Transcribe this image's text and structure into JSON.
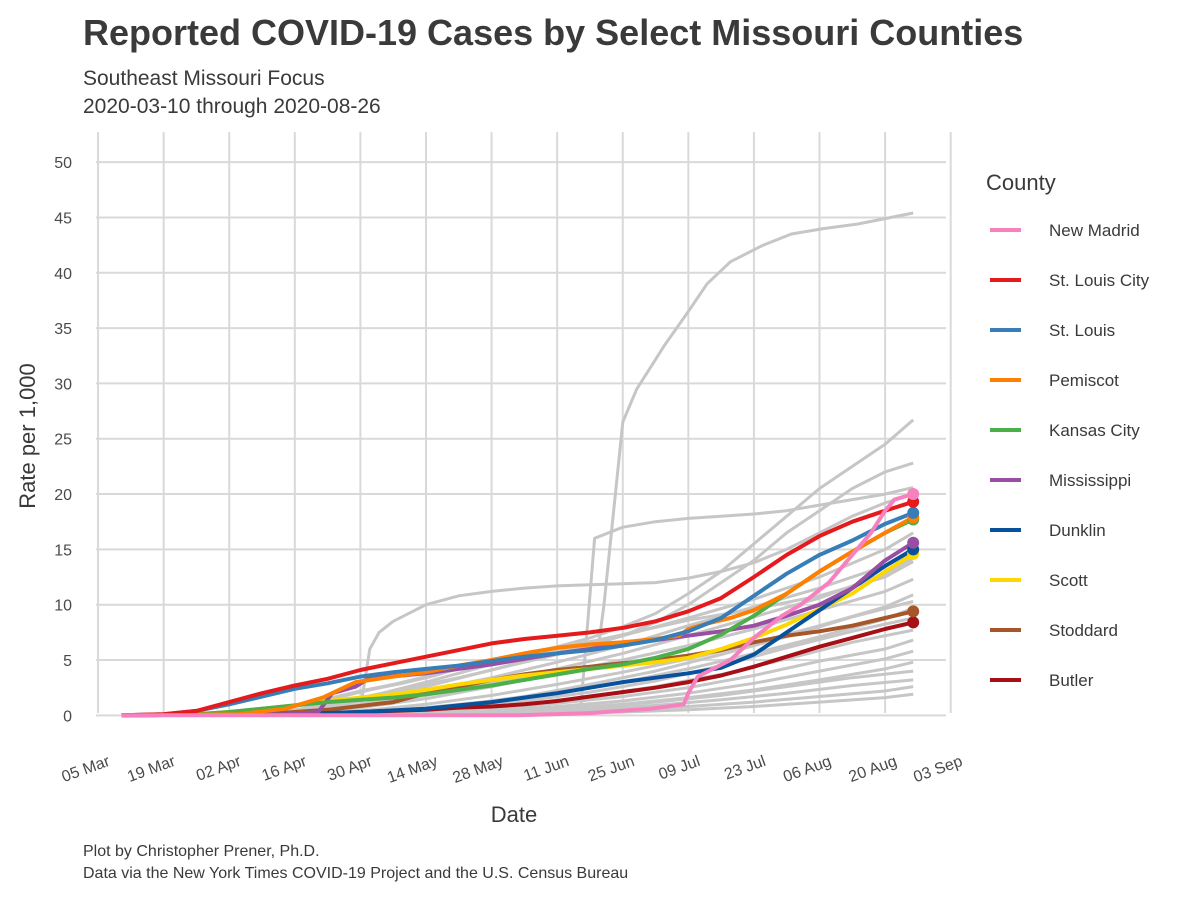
{
  "chart_data": {
    "type": "line",
    "title": "Reported COVID-19 Cases by Select Missouri Counties",
    "subtitle_line1": "Southeast Missouri Focus",
    "subtitle_line2": "2020-03-10 through 2020-08-26",
    "xlabel": "Date",
    "ylabel": "Rate per 1,000",
    "caption_line1": "Plot by Christopher Prener, Ph.D.",
    "caption_line2": "Data via the New York Times COVID-19 Project and the U.S. Census Bureau",
    "legend_title": "County",
    "legend_position": "right",
    "x_domain_days": [
      -3,
      181
    ],
    "x_ticks": [
      {
        "day": 0,
        "label": "05 Mar"
      },
      {
        "day": 14,
        "label": "19 Mar"
      },
      {
        "day": 28,
        "label": "02 Apr"
      },
      {
        "day": 42,
        "label": "16 Apr"
      },
      {
        "day": 56,
        "label": "30 Apr"
      },
      {
        "day": 70,
        "label": "14 May"
      },
      {
        "day": 84,
        "label": "28 May"
      },
      {
        "day": 98,
        "label": "11 Jun"
      },
      {
        "day": 112,
        "label": "25 Jun"
      },
      {
        "day": 126,
        "label": "09 Jul"
      },
      {
        "day": 140,
        "label": "23 Jul"
      },
      {
        "day": 154,
        "label": "06 Aug"
      },
      {
        "day": 168,
        "label": "20 Aug"
      },
      {
        "day": 182,
        "label": "03 Sep"
      }
    ],
    "ylim": [
      -2.5,
      52
    ],
    "y_ticks": [
      0,
      5,
      10,
      15,
      20,
      25,
      30,
      35,
      40,
      45,
      50
    ],
    "x_unit_note": "days since 2020-03-05",
    "series": [
      {
        "name": "New Madrid",
        "color": "#f781bf",
        "x": [
          5,
          90,
          105,
          118,
          125,
          126,
          128,
          135,
          140,
          146,
          150,
          156,
          160,
          165,
          168,
          170,
          174
        ],
        "y": [
          0,
          0,
          0.2,
          0.6,
          1.0,
          2.0,
          3.5,
          5.0,
          7.0,
          9.0,
          10.0,
          12.0,
          14.0,
          16.5,
          18.5,
          19.5,
          20.0
        ]
      },
      {
        "name": "St. Louis City",
        "color": "#e41a1c",
        "x": [
          5,
          14,
          21,
          28,
          35,
          42,
          49,
          56,
          63,
          70,
          77,
          84,
          91,
          98,
          105,
          112,
          119,
          126,
          133,
          140,
          147,
          154,
          161,
          168,
          174
        ],
        "y": [
          0,
          0.1,
          0.4,
          1.2,
          2.0,
          2.7,
          3.3,
          4.1,
          4.7,
          5.3,
          5.9,
          6.5,
          6.9,
          7.2,
          7.5,
          7.9,
          8.5,
          9.4,
          10.6,
          12.5,
          14.5,
          16.2,
          17.5,
          18.5,
          19.3
        ]
      },
      {
        "name": "St. Louis",
        "color": "#377eb8",
        "x": [
          5,
          14,
          21,
          28,
          35,
          42,
          49,
          56,
          63,
          70,
          77,
          84,
          91,
          98,
          105,
          112,
          119,
          126,
          133,
          140,
          147,
          154,
          161,
          168,
          174
        ],
        "y": [
          0,
          0.1,
          0.4,
          1.0,
          1.7,
          2.4,
          2.9,
          3.5,
          3.9,
          4.2,
          4.5,
          4.9,
          5.3,
          5.6,
          5.9,
          6.3,
          6.8,
          7.6,
          8.8,
          10.8,
          12.8,
          14.5,
          15.8,
          17.3,
          18.3
        ]
      },
      {
        "name": "Pemiscot",
        "color": "#ff7f00",
        "x": [
          5,
          30,
          40,
          48,
          55,
          63,
          70,
          77,
          84,
          91,
          98,
          105,
          112,
          119,
          124,
          126,
          130,
          135,
          140,
          147,
          154,
          161,
          168,
          174
        ],
        "y": [
          0,
          0.1,
          0.6,
          1.6,
          3.0,
          3.5,
          3.9,
          4.5,
          5.0,
          5.6,
          6.1,
          6.4,
          6.6,
          6.9,
          7.2,
          7.8,
          8.3,
          8.8,
          9.5,
          11.0,
          13.0,
          14.8,
          16.5,
          17.9
        ]
      },
      {
        "name": "Kansas City",
        "color": "#4daf4a",
        "x": [
          5,
          21,
          28,
          35,
          42,
          49,
          56,
          63,
          70,
          77,
          84,
          91,
          98,
          105,
          112,
          119,
          126,
          133,
          140,
          147,
          154,
          161,
          168,
          174
        ],
        "y": [
          0,
          0.1,
          0.3,
          0.6,
          0.9,
          1.2,
          1.4,
          1.6,
          1.9,
          2.3,
          2.7,
          3.2,
          3.7,
          4.2,
          4.6,
          5.2,
          6.0,
          7.3,
          9.0,
          11.0,
          13.0,
          14.8,
          16.5,
          17.7
        ]
      },
      {
        "name": "Mississippi",
        "color": "#984ea3",
        "x": [
          5,
          40,
          47,
          50,
          55,
          58,
          65,
          70,
          77,
          84,
          91,
          98,
          105,
          112,
          119,
          126,
          133,
          140,
          147,
          154,
          161,
          168,
          174
        ],
        "y": [
          0,
          0.1,
          0.3,
          2.0,
          2.6,
          3.4,
          3.6,
          3.8,
          4.2,
          4.6,
          5.1,
          5.6,
          6.0,
          6.5,
          6.8,
          7.2,
          7.6,
          8.1,
          9.0,
          10.0,
          11.5,
          14.0,
          15.6
        ]
      },
      {
        "name": "Dunklin",
        "color": "#08519c",
        "x": [
          5,
          40,
          56,
          70,
          77,
          84,
          91,
          98,
          105,
          112,
          119,
          126,
          133,
          140,
          147,
          154,
          161,
          168,
          174
        ],
        "y": [
          0,
          0.1,
          0.3,
          0.6,
          0.9,
          1.2,
          1.6,
          2.0,
          2.5,
          3.0,
          3.4,
          3.8,
          4.3,
          5.5,
          7.5,
          9.5,
          11.5,
          13.5,
          15.0
        ]
      },
      {
        "name": "Scott",
        "color": "#ffd700",
        "x": [
          5,
          21,
          28,
          35,
          42,
          49,
          56,
          63,
          70,
          77,
          84,
          91,
          98,
          105,
          112,
          119,
          126,
          133,
          140,
          147,
          154,
          161,
          168,
          174
        ],
        "y": [
          0,
          0.1,
          0.3,
          0.6,
          0.9,
          1.3,
          1.6,
          1.9,
          2.3,
          2.8,
          3.2,
          3.6,
          3.9,
          4.2,
          4.5,
          4.8,
          5.2,
          6.0,
          7.0,
          8.2,
          9.6,
          11.0,
          13.0,
          14.6
        ]
      },
      {
        "name": "Stoddard",
        "color": "#a65628",
        "x": [
          5,
          35,
          49,
          63,
          70,
          77,
          84,
          91,
          98,
          105,
          112,
          119,
          126,
          133,
          140,
          147,
          154,
          161,
          168,
          174
        ],
        "y": [
          0,
          0.1,
          0.5,
          1.2,
          2.0,
          2.6,
          3.2,
          3.7,
          4.1,
          4.4,
          4.7,
          5.0,
          5.4,
          5.9,
          6.6,
          7.2,
          7.6,
          8.1,
          8.8,
          9.4
        ]
      },
      {
        "name": "Butler",
        "color": "#a50f15",
        "x": [
          5,
          42,
          56,
          70,
          77,
          84,
          91,
          98,
          105,
          112,
          119,
          126,
          133,
          140,
          147,
          154,
          161,
          168,
          174
        ],
        "y": [
          0,
          0.1,
          0.3,
          0.5,
          0.7,
          0.8,
          1.0,
          1.3,
          1.7,
          2.1,
          2.5,
          3.0,
          3.6,
          4.4,
          5.3,
          6.2,
          7.0,
          7.8,
          8.4
        ]
      }
    ],
    "background_series_color": "#c6c6c6",
    "background_series": [
      {
        "x": [
          5,
          30,
          44,
          48,
          51,
          58,
          65,
          72,
          79,
          86,
          93,
          100,
          107,
          108,
          112,
          115,
          118,
          121,
          126,
          130,
          135,
          142,
          148,
          155,
          162,
          168,
          174
        ],
        "y": [
          0,
          0.2,
          0.4,
          1.0,
          1.6,
          2.3,
          2.9,
          3.6,
          4.5,
          5.2,
          5.8,
          6.3,
          6.8,
          10.0,
          26.5,
          29.5,
          31.5,
          33.5,
          36.5,
          39.0,
          41.0,
          42.5,
          43.5,
          44.0,
          44.4,
          44.9,
          45.4
        ]
      },
      {
        "x": [
          5,
          35,
          42,
          49,
          56,
          63,
          70,
          77,
          84,
          91,
          98,
          105,
          112,
          119,
          126,
          133,
          140,
          147,
          154,
          161,
          168,
          174
        ],
        "y": [
          0,
          0.2,
          0.8,
          1.5,
          2.2,
          2.8,
          3.5,
          4.2,
          4.9,
          5.5,
          6.2,
          7.0,
          8.0,
          9.2,
          11.0,
          13.0,
          15.5,
          18.0,
          20.5,
          22.5,
          24.5,
          26.7
        ]
      },
      {
        "x": [
          5,
          35,
          42,
          49,
          56,
          63,
          70,
          77,
          84,
          91,
          98,
          105,
          112,
          119,
          126,
          133,
          140,
          147,
          154,
          161,
          168,
          174
        ],
        "y": [
          0,
          0.1,
          0.5,
          1.0,
          1.6,
          2.2,
          2.8,
          3.4,
          4.1,
          4.8,
          5.5,
          6.3,
          7.2,
          8.4,
          10.0,
          12.0,
          14.0,
          16.5,
          18.5,
          20.5,
          22.0,
          22.8
        ]
      },
      {
        "x": [
          5,
          28,
          42,
          56,
          58,
          60,
          63,
          70,
          77,
          84,
          91,
          98,
          105,
          112,
          119,
          126,
          133,
          140,
          147,
          154,
          161,
          168,
          174
        ],
        "y": [
          0,
          0.1,
          0.3,
          0.6,
          6.0,
          7.5,
          8.5,
          10.0,
          10.8,
          11.2,
          11.5,
          11.7,
          11.8,
          11.9,
          12.0,
          12.4,
          13.0,
          13.8,
          15.0,
          16.5,
          18.0,
          19.2,
          20.0
        ]
      },
      {
        "x": [
          5,
          56,
          70,
          84,
          98,
          103,
          106,
          112,
          119,
          126,
          133,
          140,
          147,
          154,
          161,
          168,
          174
        ],
        "y": [
          0,
          0.1,
          0.2,
          0.3,
          0.4,
          0.5,
          16.0,
          17.0,
          17.5,
          17.8,
          18.0,
          18.2,
          18.5,
          19.0,
          19.5,
          20.0,
          20.6
        ]
      },
      {
        "x": [
          5,
          42,
          56,
          70,
          84,
          98,
          112,
          126,
          140,
          154,
          168,
          174
        ],
        "y": [
          0,
          0.3,
          1.3,
          2.6,
          4.1,
          5.7,
          7.2,
          8.8,
          10.5,
          12.5,
          15.0,
          16.5
        ]
      },
      {
        "x": [
          5,
          42,
          56,
          70,
          84,
          98,
          112,
          126,
          140,
          154,
          168,
          174
        ],
        "y": [
          0,
          0.2,
          1.0,
          2.2,
          3.4,
          4.8,
          6.3,
          8.1,
          9.8,
          11.5,
          13.5,
          14.8
        ]
      },
      {
        "x": [
          5,
          42,
          56,
          70,
          84,
          98,
          112,
          126,
          140,
          154,
          168,
          174
        ],
        "y": [
          0,
          0.3,
          1.5,
          3.0,
          4.6,
          6.0,
          7.3,
          8.6,
          9.6,
          10.8,
          12.5,
          13.9
        ]
      },
      {
        "x": [
          5,
          42,
          56,
          70,
          84,
          98,
          112,
          126,
          140,
          154,
          168,
          174
        ],
        "y": [
          0,
          0.2,
          0.7,
          1.5,
          2.6,
          3.8,
          5.0,
          6.3,
          7.8,
          9.5,
          11.2,
          12.3
        ]
      },
      {
        "x": [
          5,
          42,
          56,
          70,
          84,
          98,
          112,
          126,
          140,
          154,
          168,
          174
        ],
        "y": [
          0,
          0.1,
          0.4,
          1.0,
          1.8,
          2.8,
          3.9,
          5.1,
          6.5,
          8.1,
          9.8,
          10.9
        ]
      },
      {
        "x": [
          5,
          42,
          56,
          70,
          84,
          98,
          112,
          126,
          140,
          154,
          168,
          174
        ],
        "y": [
          0,
          0.1,
          0.3,
          0.7,
          1.3,
          2.1,
          3.0,
          4.2,
          5.6,
          7.1,
          8.7,
          9.7
        ]
      },
      {
        "x": [
          5,
          49,
          63,
          77,
          91,
          105,
          119,
          133,
          147,
          161,
          174
        ],
        "y": [
          0,
          0.1,
          0.3,
          0.7,
          1.3,
          2.1,
          3.1,
          4.5,
          6.1,
          7.6,
          8.8
        ]
      },
      {
        "x": [
          5,
          49,
          63,
          77,
          91,
          105,
          119,
          133,
          147,
          161,
          174
        ],
        "y": [
          0,
          0.1,
          0.2,
          0.5,
          1.0,
          1.7,
          2.6,
          3.7,
          5.1,
          6.6,
          7.7
        ]
      },
      {
        "x": [
          5,
          56,
          70,
          84,
          98,
          112,
          126,
          140,
          154,
          168,
          174
        ],
        "y": [
          0,
          0.1,
          0.3,
          0.6,
          1.1,
          1.7,
          2.5,
          3.6,
          4.9,
          6.0,
          6.8
        ]
      },
      {
        "x": [
          5,
          56,
          70,
          84,
          98,
          112,
          126,
          140,
          154,
          168,
          174
        ],
        "y": [
          0,
          0.1,
          0.2,
          0.4,
          0.8,
          1.3,
          2.0,
          2.9,
          4.0,
          5.1,
          5.8
        ]
      },
      {
        "x": [
          5,
          56,
          70,
          84,
          98,
          112,
          126,
          140,
          154,
          168,
          174
        ],
        "y": [
          0,
          0.1,
          0.2,
          0.3,
          0.6,
          1.0,
          1.6,
          2.3,
          3.2,
          4.2,
          4.8
        ]
      },
      {
        "x": [
          5,
          63,
          77,
          91,
          105,
          119,
          133,
          147,
          161,
          174
        ],
        "y": [
          0,
          0.1,
          0.2,
          0.4,
          0.7,
          1.2,
          1.8,
          2.6,
          3.4,
          4.0
        ]
      },
      {
        "x": [
          5,
          63,
          77,
          91,
          105,
          119,
          133,
          147,
          161,
          174
        ],
        "y": [
          0,
          0.1,
          0.2,
          0.3,
          0.5,
          0.9,
          1.4,
          2.0,
          2.7,
          3.2
        ]
      },
      {
        "x": [
          5,
          70,
          84,
          98,
          112,
          126,
          140,
          154,
          168,
          174
        ],
        "y": [
          0,
          0.1,
          0.2,
          0.3,
          0.5,
          0.8,
          1.2,
          1.7,
          2.2,
          2.6
        ]
      },
      {
        "x": [
          5,
          70,
          84,
          98,
          112,
          126,
          140,
          154,
          168,
          174
        ],
        "y": [
          0,
          0.1,
          0.1,
          0.2,
          0.3,
          0.5,
          0.8,
          1.2,
          1.6,
          1.9
        ]
      },
      {
        "x": [
          5,
          42,
          56,
          70,
          84,
          98,
          112,
          126,
          140,
          154,
          168,
          174
        ],
        "y": [
          0,
          0.2,
          0.9,
          1.8,
          2.9,
          4.2,
          5.6,
          7.2,
          8.9,
          10.6,
          12.8,
          14.2
        ]
      },
      {
        "x": [
          5,
          49,
          63,
          77,
          91,
          105,
          119,
          133,
          147,
          161,
          174
        ],
        "y": [
          0,
          0.1,
          0.4,
          0.9,
          1.7,
          2.8,
          4.0,
          5.5,
          7.1,
          8.9,
          10.3
        ]
      }
    ]
  }
}
